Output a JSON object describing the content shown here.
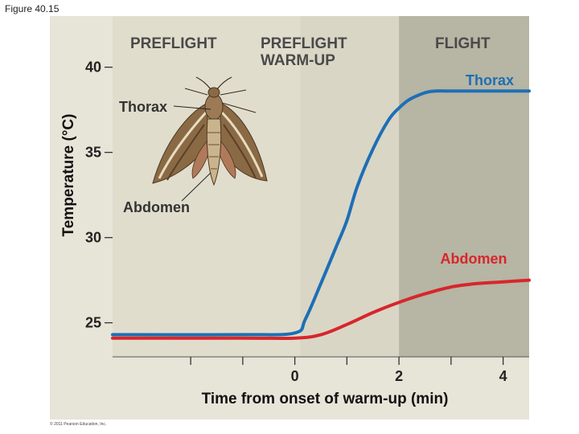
{
  "figure_label": "Figure 40.15",
  "copyright": "© 2011 Pearson Education, Inc.",
  "moth_labels": {
    "thorax": "Thorax",
    "abdomen": "Abdomen"
  },
  "colors": {
    "panel": "#e7e4d8",
    "preflight": "#e1ddcd",
    "warmup": "#d9d6c6",
    "flight": "#b7b5a3",
    "thorax": "#1d6fb5",
    "abdomen": "#d7262b"
  },
  "chart_data": {
    "type": "line",
    "xlabel": "Time from onset of warm-up (min)",
    "ylabel": "Temperature (°C)",
    "xlim": [
      -3.5,
      4.5
    ],
    "ylim": [
      23,
      43
    ],
    "x_ticks": [
      -2,
      -1,
      0,
      1,
      2,
      3,
      4
    ],
    "x_tick_labels": [
      {
        "value": 0,
        "label": "0"
      },
      {
        "value": 2,
        "label": "2"
      },
      {
        "value": 4,
        "label": "4"
      }
    ],
    "y_ticks": [
      {
        "value": 25,
        "label": "25"
      },
      {
        "value": 30,
        "label": "30"
      },
      {
        "value": 35,
        "label": "35"
      },
      {
        "value": 40,
        "label": "40"
      }
    ],
    "phases": [
      {
        "name": "PREFLIGHT",
        "lines": [
          "PREFLIGHT"
        ],
        "x_start": -3.5,
        "x_end": 0.1
      },
      {
        "name": "PREFLIGHT WARM-UP",
        "lines": [
          "PREFLIGHT",
          "WARM-UP"
        ],
        "x_start": 0.1,
        "x_end": 2.0
      },
      {
        "name": "FLIGHT",
        "lines": [
          "FLIGHT"
        ],
        "x_start": 2.0,
        "x_end": 4.5
      }
    ],
    "series": [
      {
        "name": "Thorax",
        "x": [
          -3.5,
          -1,
          0,
          0.2,
          0.5,
          0.8,
          1.0,
          1.2,
          1.5,
          1.8,
          2.0,
          2.2,
          2.5,
          2.7,
          3.0,
          3.5,
          4.0,
          4.5
        ],
        "y": [
          24.3,
          24.3,
          24.4,
          25.2,
          27.3,
          29.5,
          31.0,
          33.0,
          35.2,
          36.9,
          37.6,
          38.1,
          38.5,
          38.6,
          38.6,
          38.6,
          38.6,
          38.6
        ]
      },
      {
        "name": "Abdomen",
        "x": [
          -3.5,
          -1,
          0,
          0.5,
          1.0,
          1.5,
          2.0,
          2.5,
          3.0,
          3.5,
          4.0,
          4.5
        ],
        "y": [
          24.1,
          24.1,
          24.1,
          24.3,
          24.9,
          25.6,
          26.2,
          26.7,
          27.1,
          27.3,
          27.4,
          27.5
        ]
      }
    ]
  }
}
